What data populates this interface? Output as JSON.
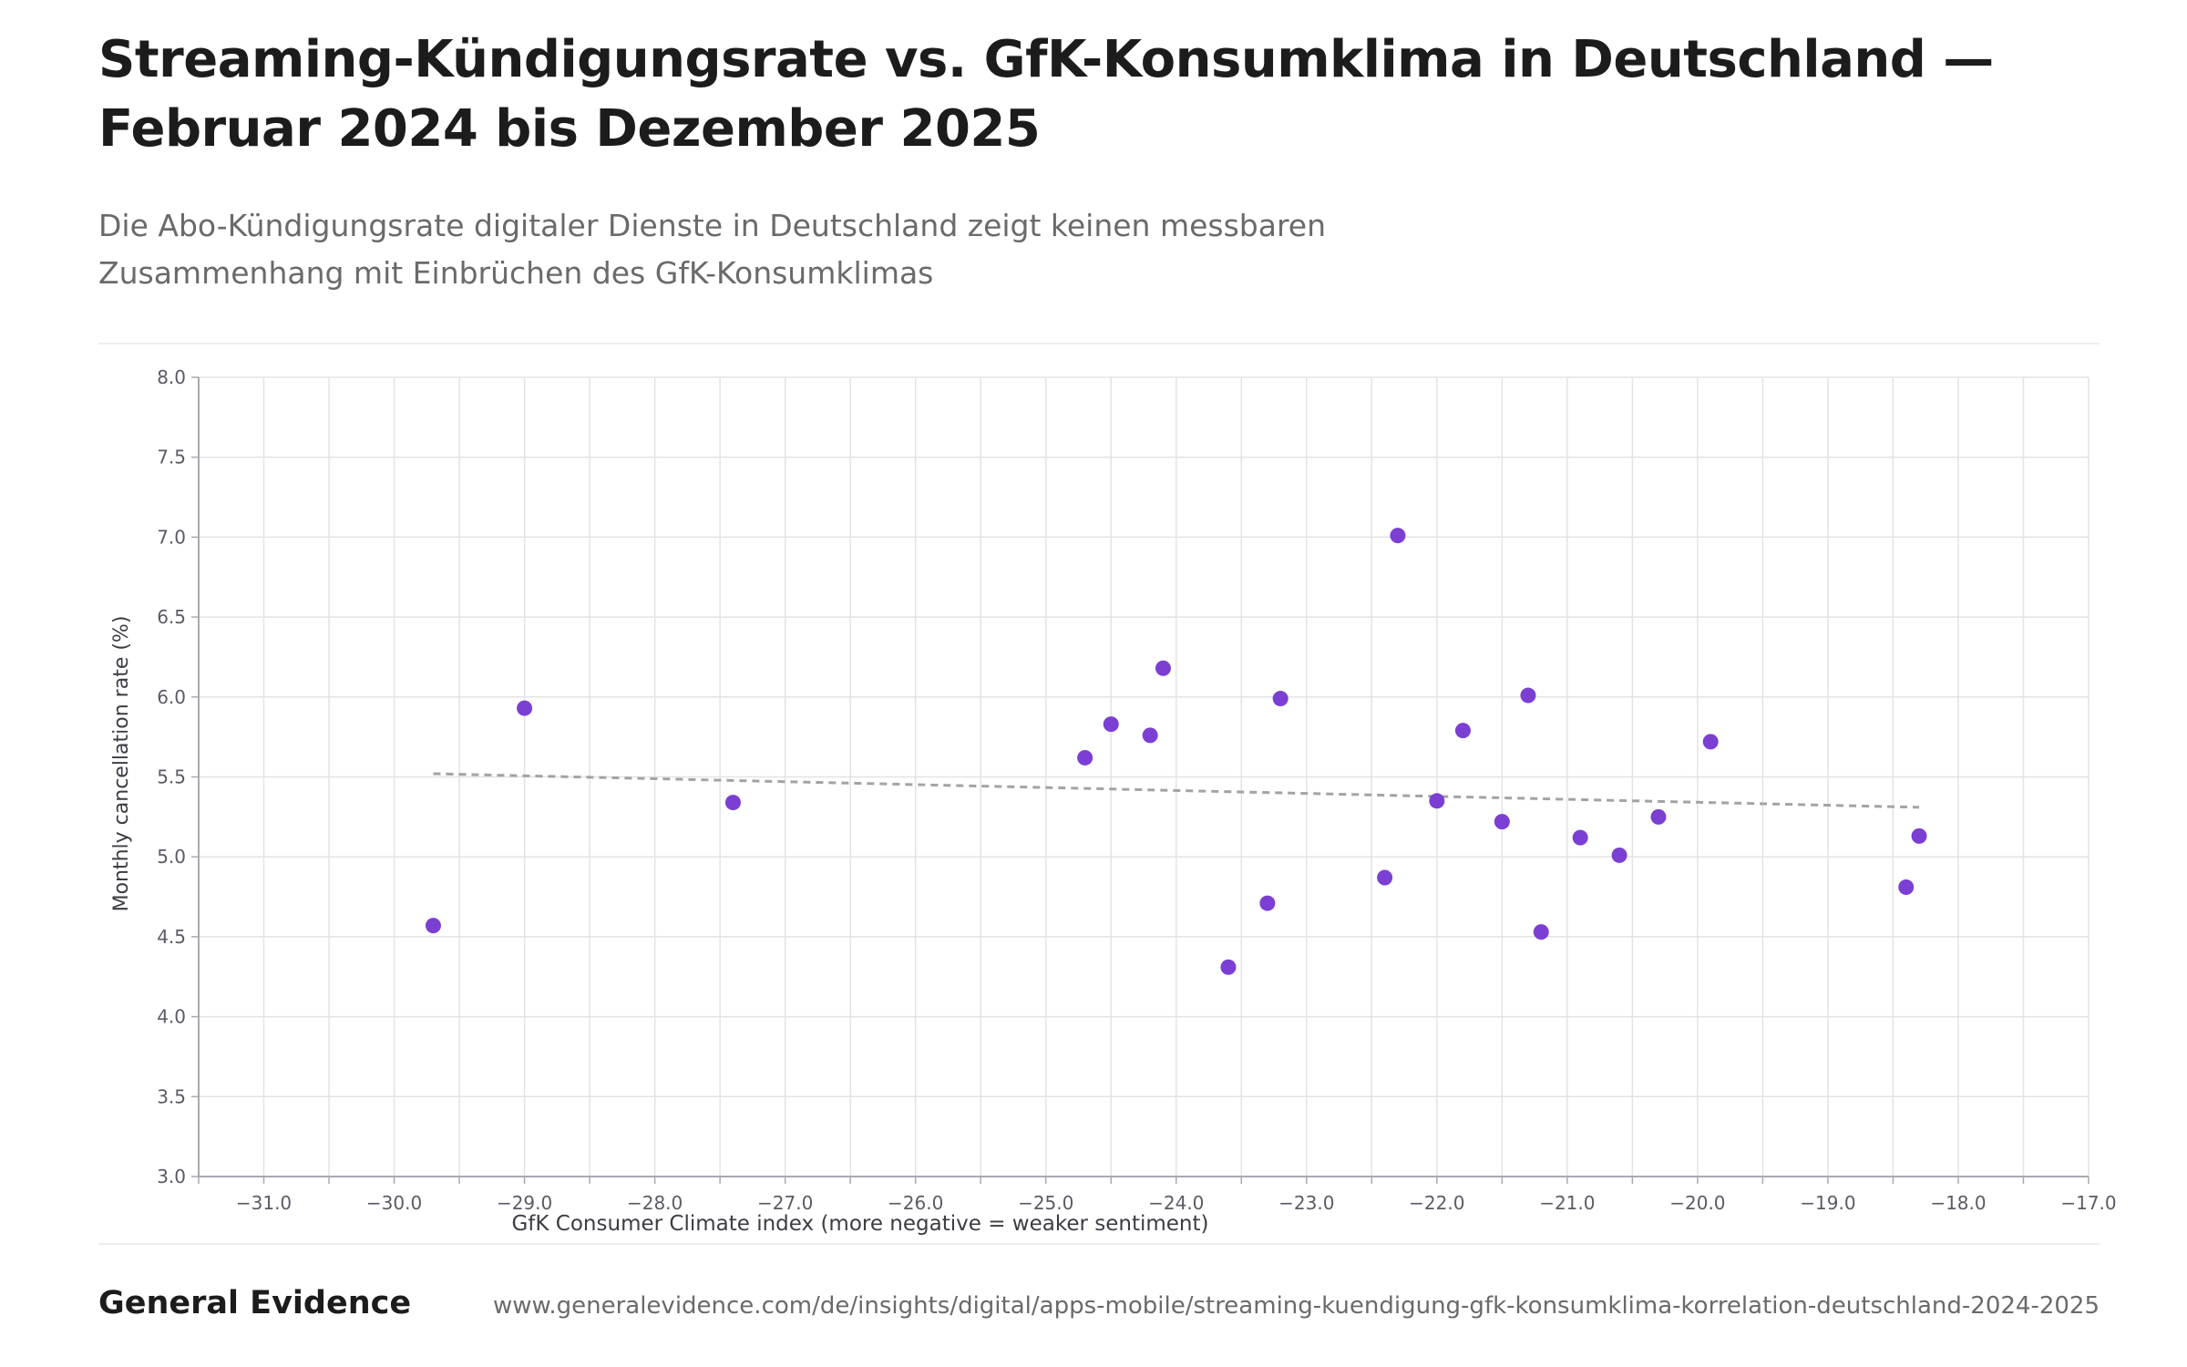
{
  "header": {
    "title": "Streaming-Kündigungsrate vs. GfK-Konsumklima in Deutschland — Februar 2024 bis Dezember 2025",
    "subtitle": "Die Abo-Kündigungsrate digitaler Dienste in Deutschland zeigt keinen messbaren Zusammenhang mit Einbrüchen des GfK-Konsumklimas"
  },
  "footer": {
    "brand": "General Evidence",
    "url": "www.generalevidence.com/de/insights/digital/apps-mobile/streaming-kuendigung-gfk-konsumklima-korrelation-deutschland-2024-2025"
  },
  "colors": {
    "point": "#7b3fd4",
    "trendline": "#a3a3a3",
    "grid": "#e3e3e6",
    "axis": "#a9a9b3",
    "tick_text": "#5b5b66"
  },
  "chart_data": {
    "type": "scatter",
    "xlabel": "GfK Consumer Climate index (more negative = weaker sentiment)",
    "ylabel": "Monthly cancellation rate (%)",
    "xlim": [
      -31.5,
      -17.0
    ],
    "ylim": [
      3.0,
      8.0
    ],
    "x_ticks": [
      -31.0,
      -30.0,
      -29.0,
      -28.0,
      -27.0,
      -26.0,
      -25.0,
      -24.0,
      -23.0,
      -22.0,
      -21.0,
      -20.0,
      -19.0,
      -18.0,
      -17.0
    ],
    "x_tick_labels": [
      "−31.0",
      "−30.0",
      "−29.0",
      "−28.0",
      "−27.0",
      "−26.0",
      "−25.0",
      "−24.0",
      "−23.0",
      "−22.0",
      "−21.0",
      "−20.0",
      "−19.0",
      "−18.0",
      "−17.0"
    ],
    "y_ticks": [
      3.0,
      3.5,
      4.0,
      4.5,
      5.0,
      5.5,
      6.0,
      6.5,
      7.0,
      7.5,
      8.0
    ],
    "y_tick_labels": [
      "3.0",
      "3.5",
      "4.0",
      "4.5",
      "5.0",
      "5.5",
      "6.0",
      "6.5",
      "7.0",
      "7.5",
      "8.0"
    ],
    "grid": true,
    "points": [
      {
        "x": -29.7,
        "y": 4.57
      },
      {
        "x": -29.0,
        "y": 5.93
      },
      {
        "x": -27.4,
        "y": 5.34
      },
      {
        "x": -24.7,
        "y": 5.62
      },
      {
        "x": -24.5,
        "y": 5.83
      },
      {
        "x": -24.2,
        "y": 5.76
      },
      {
        "x": -24.1,
        "y": 6.18
      },
      {
        "x": -23.6,
        "y": 4.31
      },
      {
        "x": -23.3,
        "y": 4.71
      },
      {
        "x": -23.2,
        "y": 5.99
      },
      {
        "x": -22.4,
        "y": 4.87
      },
      {
        "x": -22.3,
        "y": 7.01
      },
      {
        "x": -22.0,
        "y": 5.35
      },
      {
        "x": -21.8,
        "y": 5.79
      },
      {
        "x": -21.5,
        "y": 5.22
      },
      {
        "x": -21.3,
        "y": 6.01
      },
      {
        "x": -21.2,
        "y": 4.53
      },
      {
        "x": -20.9,
        "y": 5.12
      },
      {
        "x": -20.6,
        "y": 5.01
      },
      {
        "x": -20.3,
        "y": 5.25
      },
      {
        "x": -19.9,
        "y": 5.72
      },
      {
        "x": -18.4,
        "y": 4.81
      },
      {
        "x": -18.3,
        "y": 5.13
      }
    ],
    "trendline": {
      "x": [
        -29.7,
        -18.3
      ],
      "y": [
        5.52,
        5.31
      ],
      "style": "dashed"
    }
  }
}
